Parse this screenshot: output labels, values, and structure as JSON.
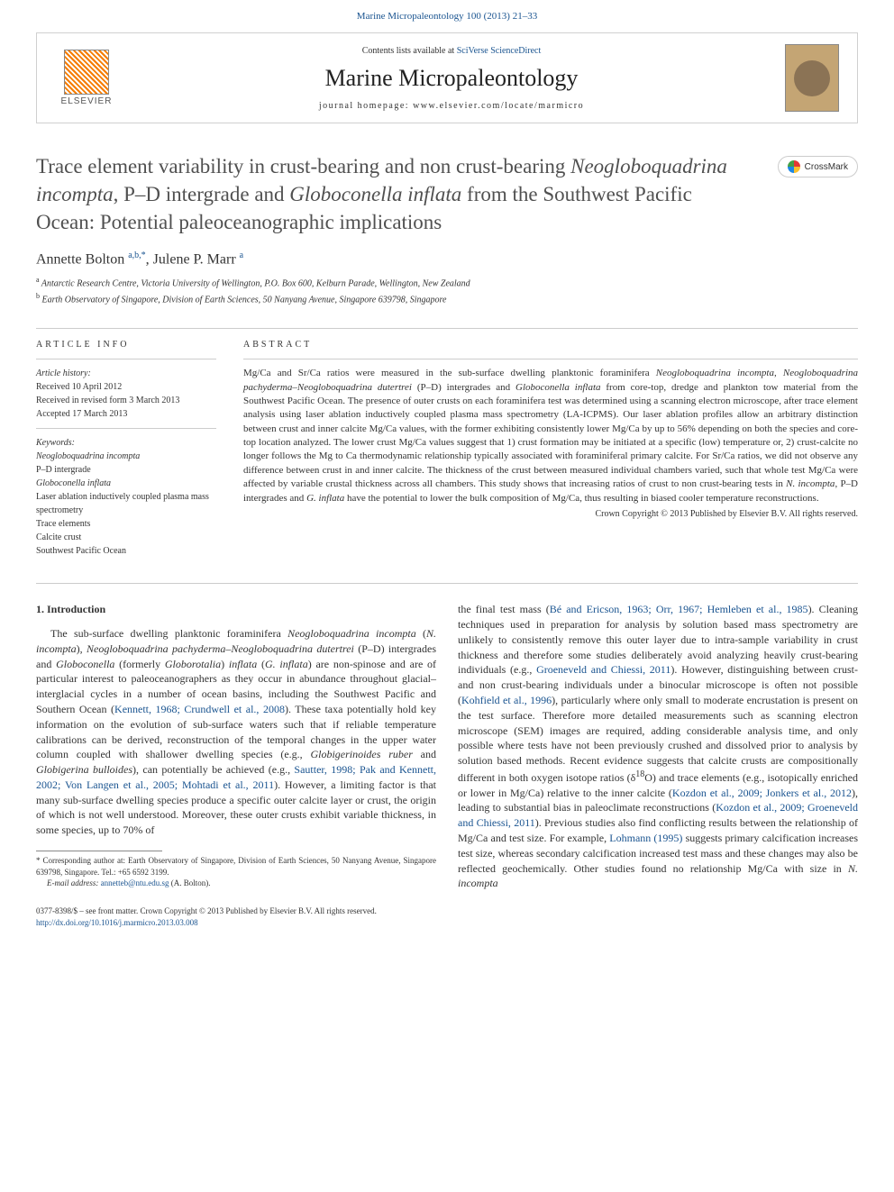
{
  "header": {
    "top_link": "Marine Micropaleontology 100 (2013) 21–33",
    "contents_prefix": "Contents lists available at ",
    "contents_link": "SciVerse ScienceDirect",
    "journal_name": "Marine Micropaleontology",
    "homepage_prefix": "journal homepage: ",
    "homepage_url": "www.elsevier.com/locate/marmicro",
    "elsevier_label": "ELSEVIER",
    "crossmark_label": "CrossMark"
  },
  "article": {
    "title_1": "Trace element variability in crust-bearing and non crust-bearing ",
    "title_2": "Neogloboquadrina incompta",
    "title_3": ", P–D intergrade and ",
    "title_4": "Globoconella inflata",
    "title_5": " from the Southwest Pacific Ocean: Potential paleoceanographic implications",
    "authors": {
      "a1_name": "Annette Bolton ",
      "a1_sup": "a,b,",
      "a1_star": "*",
      "sep": ", ",
      "a2_name": "Julene P. Marr ",
      "a2_sup": "a"
    },
    "affiliations": {
      "a_sup": "a",
      "a_text": " Antarctic Research Centre, Victoria University of Wellington, P.O. Box 600, Kelburn Parade, Wellington, New Zealand",
      "b_sup": "b",
      "b_text": " Earth Observatory of Singapore, Division of Earth Sciences, 50 Nanyang Avenue, Singapore 639798, Singapore"
    }
  },
  "info": {
    "label": "ARTICLE INFO",
    "history_heading": "Article history:",
    "received": "Received 10 April 2012",
    "revised": "Received in revised form 3 March 2013",
    "accepted": "Accepted 17 March 2013",
    "keywords_heading": "Keywords:",
    "kw": [
      "Neogloboquadrina incompta",
      "P–D intergrade",
      "Globoconella inflata",
      "Laser ablation inductively coupled plasma mass spectrometry",
      "Trace elements",
      "Calcite crust",
      "Southwest Pacific Ocean"
    ]
  },
  "abstract": {
    "label": "ABSTRACT",
    "text_pre": "Mg/Ca and Sr/Ca ratios were measured in the sub-surface dwelling planktonic foraminifera ",
    "sp1": "Neogloboquadrina incompta",
    "t2": ", ",
    "sp2": "Neogloboquadrina pachyderma–Neogloboquadrina dutertrei",
    "t3": " (P–D) intergrades and ",
    "sp3": "Globoconella inflata",
    "t4": " from core-top, dredge and plankton tow material from the Southwest Pacific Ocean. The presence of outer crusts on each foraminifera test was determined using a scanning electron microscope, after trace element analysis using laser ablation inductively coupled plasma mass spectrometry (LA-ICPMS). Our laser ablation profiles allow an arbitrary distinction between crust and inner calcite Mg/Ca values, with the former exhibiting consistently lower Mg/Ca by up to 56% depending on both the species and core-top location analyzed. The lower crust Mg/Ca values suggest that 1) crust formation may be initiated at a specific (low) temperature or, 2) crust-calcite no longer follows the Mg to Ca thermodynamic relationship typically associated with foraminiferal primary calcite. For Sr/Ca ratios, we did not observe any difference between crust in and inner calcite. The thickness of the crust between measured individual chambers varied, such that whole test Mg/Ca were affected by variable crustal thickness across all chambers. This study shows that increasing ratios of crust to non crust-bearing tests in ",
    "sp4": "N. incompta",
    "t5": ", P–D intergrades and ",
    "sp5": "G. inflata",
    "t6": " have the potential to lower the bulk composition of Mg/Ca, thus resulting in biased cooler temperature reconstructions.",
    "copyright": "Crown Copyright © 2013 Published by Elsevier B.V. All rights reserved."
  },
  "intro": {
    "heading": "1. Introduction",
    "c1_p1_a": "The sub-surface dwelling planktonic foraminifera ",
    "c1_sp1": "Neogloboquadrina incompta",
    "c1_b": " (",
    "c1_sp2": "N. incompta",
    "c1_c": "), ",
    "c1_sp3": "Neogloboquadrina pachyderma–Neogloboquadrina dutertrei",
    "c1_d": " (P–D) intergrades and ",
    "c1_sp4": "Globoconella",
    "c1_e": " (formerly ",
    "c1_sp5": "Globorotalia",
    "c1_f": ") ",
    "c1_sp6": "inflata",
    "c1_g": " (",
    "c1_sp7": "G. inflata",
    "c1_h": ") are non-spinose and are of particular interest to paleoceanographers as they occur in abundance throughout glacial–interglacial cycles in a number of ocean basins, including the Southwest Pacific and Southern Ocean (",
    "c1_ref1": "Kennett, 1968; Crundwell et al., 2008",
    "c1_i": "). These taxa potentially hold key information on the evolution of sub-surface waters such that if reliable temperature calibrations can be derived, reconstruction of the temporal changes in the upper water column coupled with shallower dwelling species (e.g., ",
    "c1_sp8": "Globigerinoides ruber",
    "c1_j": " and ",
    "c1_sp9": "Globigerina bulloides",
    "c1_k": "), can potentially be achieved (e.g., ",
    "c1_ref2": "Sautter, 1998; Pak and Kennett, 2002; Von Langen et al., 2005; Mohtadi et al., 2011",
    "c1_l": "). However, a limiting factor is that many sub-surface dwelling species produce a specific outer calcite layer or crust, the origin of which is not well understood. Moreover, these outer crusts exhibit variable thickness, in some species, up to 70% of",
    "c2_a": "the final test mass (",
    "c2_ref1": "Bé and Ericson, 1963; Orr, 1967; Hemleben et al., 1985",
    "c2_b": "). Cleaning techniques used in preparation for analysis by solution based mass spectrometry are unlikely to consistently remove this outer layer due to intra-sample variability in crust thickness and therefore some studies deliberately avoid analyzing heavily crust-bearing individuals (e.g., ",
    "c2_ref2": "Groeneveld and Chiessi, 2011",
    "c2_c": "). However, distinguishing between crust- and non crust-bearing individuals under a binocular microscope is often not possible (",
    "c2_ref3": "Kohfield et al., 1996",
    "c2_d": "), particularly where only small to moderate encrustation is present on the test surface. Therefore more detailed measurements such as scanning electron microscope (SEM) images are required, adding considerable analysis time, and only possible where tests have not been previously crushed and dissolved prior to analysis by solution based methods. Recent evidence suggests that calcite crusts are compositionally different in both oxygen isotope ratios (δ",
    "c2_sup1": "18",
    "c2_e": "O) and trace elements (e.g., isotopically enriched or lower in Mg/Ca) relative to the inner calcite (",
    "c2_ref4": "Kozdon et al., 2009; Jonkers et al., 2012",
    "c2_f": "), leading to substantial bias in paleoclimate reconstructions (",
    "c2_ref5": "Kozdon et al., 2009; Groeneveld and Chiessi, 2011",
    "c2_g": "). Previous studies also find conflicting results between the relationship of Mg/Ca and test size. For example, ",
    "c2_ref6": "Lohmann (1995)",
    "c2_h": " suggests primary calcification increases test size, whereas secondary calcification increased test mass and these changes may also be reflected geochemically. Other studies found no relationship Mg/Ca with size in ",
    "c2_sp1": "N. incompta"
  },
  "footnote": {
    "corr_star": "*",
    "corr_text": " Corresponding author at: Earth Observatory of Singapore, Division of Earth Sciences, 50 Nanyang Avenue, Singapore 639798, Singapore. Tel.: +65 6592 3199.",
    "email_label": "E-mail address: ",
    "email": "annetteb@ntu.edu.sg",
    "email_suffix": " (A. Bolton)."
  },
  "footer": {
    "line1": "0377-8398/$ – see front matter. Crown Copyright © 2013 Published by Elsevier B.V. All rights reserved.",
    "doi": "http://dx.doi.org/10.1016/j.marmicro.2013.03.008"
  },
  "colors": {
    "link": "#1a5490",
    "title_gray": "#505050",
    "rule": "#cccccc"
  }
}
